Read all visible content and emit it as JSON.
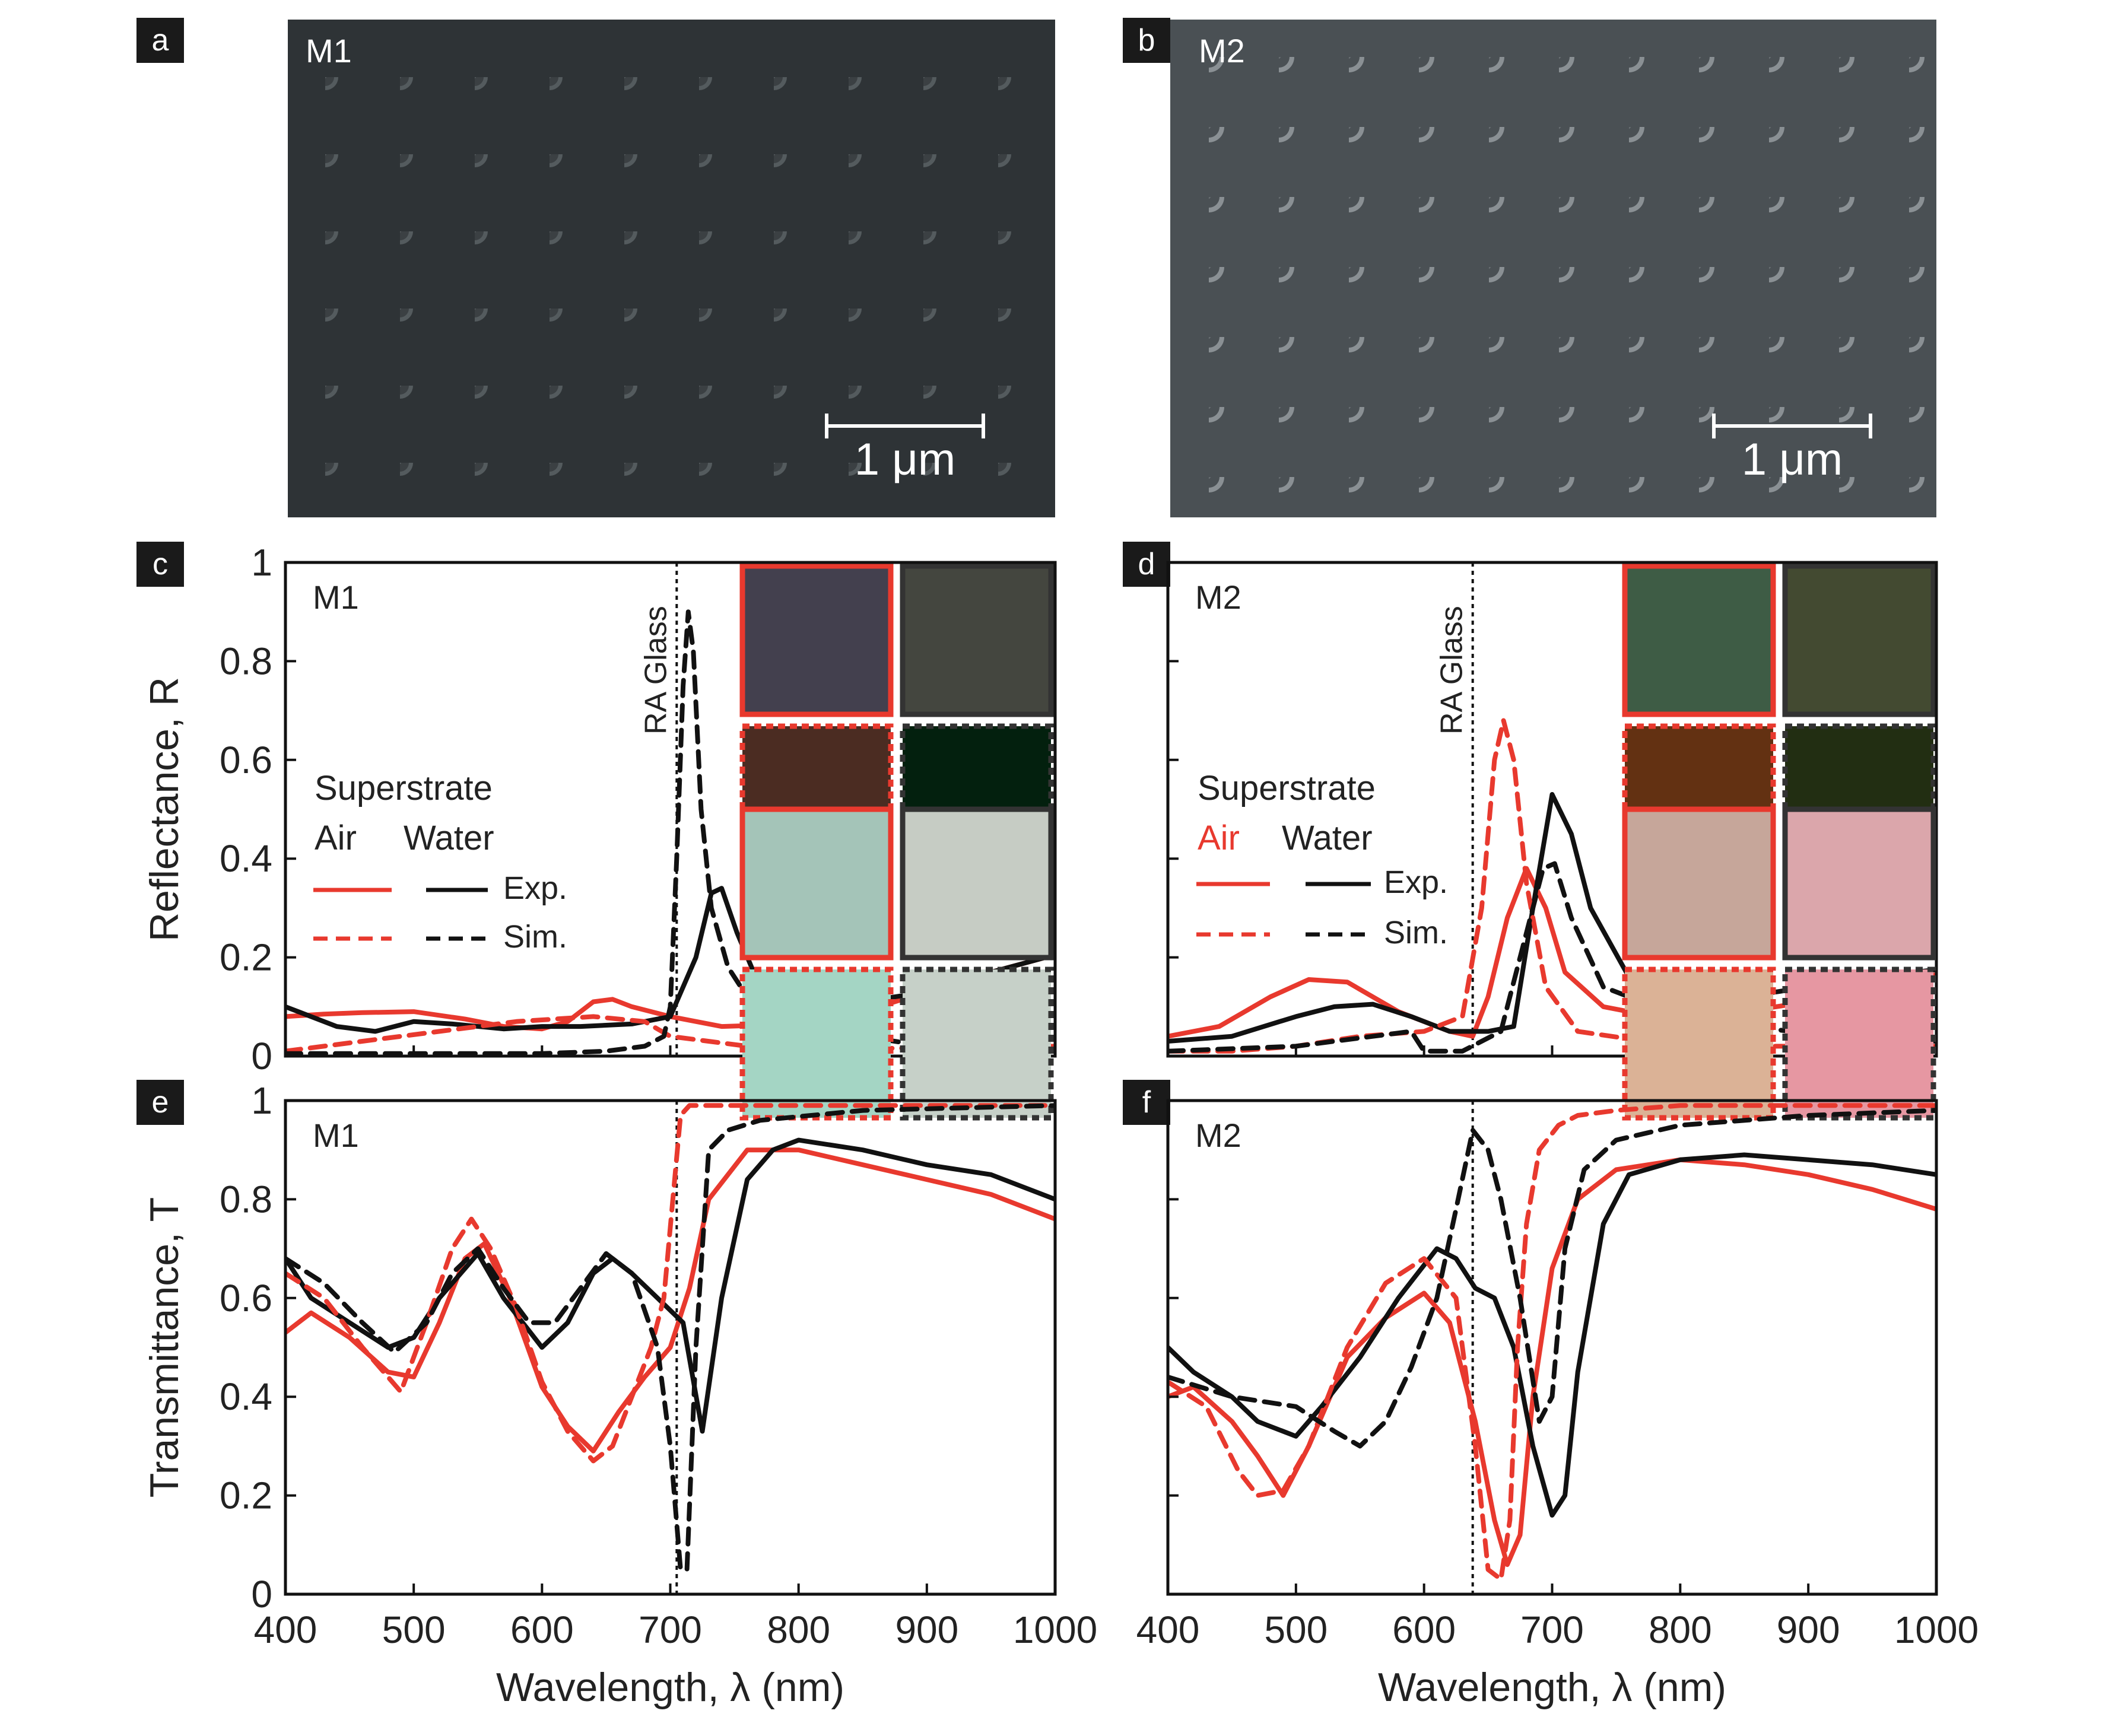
{
  "figure": {
    "panels": {
      "a": {
        "label": "a",
        "sample": "M1",
        "scalebar": "1 μm"
      },
      "b": {
        "label": "b",
        "sample": "M2",
        "scalebar": "1 μm"
      }
    },
    "colors": {
      "air": "#e8392e",
      "water": "#111111",
      "text": "#222222",
      "sem_bg_a": "#2e3336",
      "sem_bg_b": "#4a5054"
    },
    "legend": {
      "heading": "Superstrate",
      "air": "Air",
      "water": "Water",
      "exp": "Exp.",
      "sim": "Sim."
    }
  },
  "chart_data": [
    {
      "id": "c",
      "label": "c",
      "sample": "M1",
      "type": "line",
      "xlabel": "",
      "ylabel": "Reflectance, R",
      "xlim": [
        400,
        1000
      ],
      "ylim": [
        0,
        1
      ],
      "xticks": [],
      "yticks": [
        0,
        0.2,
        0.4,
        0.6,
        0.8,
        1
      ],
      "ra": {
        "x": 705,
        "label": "RA Glass"
      },
      "swatches": [
        "#43404e",
        "#44463f",
        "#4b2c22",
        "#03200e"
      ],
      "series": [
        {
          "name": "Air Exp.",
          "color": "#e8392e",
          "dash": false,
          "x": [
            400,
            430,
            460,
            500,
            540,
            570,
            600,
            620,
            640,
            655,
            670,
            700,
            740,
            800,
            850,
            900,
            950,
            1000
          ],
          "y": [
            0.08,
            0.085,
            0.088,
            0.09,
            0.075,
            0.06,
            0.055,
            0.07,
            0.11,
            0.115,
            0.1,
            0.08,
            0.06,
            0.065,
            0.09,
            0.13,
            0.17,
            0.205
          ]
        },
        {
          "name": "Water Exp.",
          "color": "#111111",
          "dash": false,
          "x": [
            400,
            440,
            470,
            500,
            530,
            570,
            600,
            630,
            670,
            700,
            720,
            732,
            740,
            752,
            765,
            780,
            800,
            850,
            900,
            950,
            1000
          ],
          "y": [
            0.1,
            0.06,
            0.05,
            0.07,
            0.065,
            0.055,
            0.06,
            0.06,
            0.065,
            0.08,
            0.2,
            0.33,
            0.34,
            0.25,
            0.17,
            0.15,
            0.12,
            0.11,
            0.13,
            0.17,
            0.205
          ]
        },
        {
          "name": "Air Sim.",
          "color": "#e8392e",
          "dash": true,
          "x": [
            400,
            460,
            520,
            580,
            640,
            680,
            700,
            760,
            850,
            1000
          ],
          "y": [
            0.01,
            0.03,
            0.05,
            0.07,
            0.08,
            0.07,
            0.04,
            0.02,
            0.015,
            0.02
          ]
        },
        {
          "name": "Water Sim.",
          "color": "#111111",
          "dash": true,
          "x": [
            400,
            500,
            600,
            650,
            680,
            695,
            700,
            705,
            710,
            714,
            718,
            724,
            732,
            745,
            760,
            800,
            900,
            1000
          ],
          "y": [
            0.005,
            0.005,
            0.005,
            0.01,
            0.02,
            0.04,
            0.1,
            0.4,
            0.75,
            0.9,
            0.82,
            0.5,
            0.3,
            0.18,
            0.12,
            0.06,
            0.02,
            0.01
          ]
        }
      ]
    },
    {
      "id": "d",
      "label": "d",
      "sample": "M2",
      "type": "line",
      "xlabel": "",
      "ylabel": "",
      "xlim": [
        400,
        1000
      ],
      "ylim": [
        0,
        1
      ],
      "xticks": [],
      "yticks": [],
      "ra": {
        "x": 638,
        "label": "RA Glass"
      },
      "swatches": [
        "#3e5c45",
        "#434a31",
        "#633112",
        "#222e12"
      ],
      "series": [
        {
          "name": "Air Exp.",
          "color": "#e8392e",
          "dash": false,
          "x": [
            400,
            440,
            480,
            510,
            540,
            580,
            620,
            638,
            650,
            665,
            680,
            695,
            710,
            740,
            780,
            850,
            900,
            950,
            1000
          ],
          "y": [
            0.04,
            0.06,
            0.12,
            0.155,
            0.15,
            0.09,
            0.05,
            0.04,
            0.12,
            0.28,
            0.38,
            0.3,
            0.17,
            0.1,
            0.08,
            0.09,
            0.11,
            0.14,
            0.165
          ]
        },
        {
          "name": "Water Exp.",
          "color": "#111111",
          "dash": false,
          "x": [
            400,
            450,
            500,
            530,
            560,
            590,
            620,
            650,
            670,
            685,
            700,
            715,
            730,
            760,
            800,
            850,
            900,
            950,
            1000
          ],
          "y": [
            0.03,
            0.04,
            0.08,
            0.1,
            0.105,
            0.08,
            0.05,
            0.05,
            0.06,
            0.3,
            0.53,
            0.45,
            0.3,
            0.16,
            0.12,
            0.12,
            0.14,
            0.16,
            0.175
          ]
        },
        {
          "name": "Air Sim.",
          "color": "#e8392e",
          "dash": true,
          "x": [
            400,
            450,
            500,
            550,
            600,
            630,
            645,
            655,
            662,
            670,
            680,
            695,
            720,
            800,
            900,
            1000
          ],
          "y": [
            0.01,
            0.01,
            0.02,
            0.04,
            0.05,
            0.08,
            0.3,
            0.6,
            0.68,
            0.6,
            0.35,
            0.14,
            0.05,
            0.02,
            0.02,
            0.02
          ]
        },
        {
          "name": "Water Sim.",
          "color": "#111111",
          "dash": true,
          "x": [
            400,
            500,
            560,
            590,
            600,
            630,
            660,
            680,
            693,
            702,
            715,
            740,
            800,
            900,
            1000
          ],
          "y": [
            0.01,
            0.02,
            0.04,
            0.05,
            0.01,
            0.01,
            0.05,
            0.25,
            0.38,
            0.39,
            0.28,
            0.14,
            0.08,
            0.045,
            0.03
          ]
        }
      ]
    },
    {
      "id": "e",
      "label": "e",
      "sample": "M1",
      "type": "line",
      "xlabel": "Wavelength, λ (nm)",
      "ylabel": "Transmittance, T",
      "xlim": [
        400,
        1000
      ],
      "ylim": [
        0,
        1
      ],
      "xticks": [
        400,
        500,
        600,
        700,
        800,
        900,
        1000
      ],
      "yticks": [
        0,
        0.2,
        0.4,
        0.6,
        0.8,
        1
      ],
      "ra": {
        "x": 705,
        "label": ""
      },
      "swatches": [
        "#a4c4b8",
        "#c6ccc4",
        "#a4d5c4",
        "#c6d0c8"
      ],
      "series": [
        {
          "name": "Air Exp.",
          "color": "#e8392e",
          "dash": false,
          "x": [
            400,
            420,
            450,
            480,
            500,
            520,
            540,
            555,
            575,
            600,
            620,
            640,
            660,
            680,
            700,
            715,
            730,
            760,
            800,
            850,
            900,
            950,
            1000
          ],
          "y": [
            0.53,
            0.57,
            0.52,
            0.45,
            0.44,
            0.55,
            0.68,
            0.71,
            0.6,
            0.42,
            0.34,
            0.29,
            0.37,
            0.44,
            0.5,
            0.62,
            0.8,
            0.9,
            0.9,
            0.87,
            0.84,
            0.81,
            0.76
          ]
        },
        {
          "name": "Water Exp.",
          "color": "#111111",
          "dash": false,
          "x": [
            400,
            420,
            450,
            480,
            500,
            520,
            550,
            570,
            600,
            620,
            640,
            655,
            670,
            690,
            710,
            725,
            740,
            760,
            780,
            800,
            850,
            900,
            950,
            1000
          ],
          "y": [
            0.68,
            0.6,
            0.55,
            0.5,
            0.52,
            0.6,
            0.69,
            0.6,
            0.5,
            0.55,
            0.65,
            0.68,
            0.65,
            0.6,
            0.55,
            0.33,
            0.6,
            0.84,
            0.9,
            0.92,
            0.9,
            0.87,
            0.85,
            0.8
          ]
        },
        {
          "name": "Air Sim.",
          "color": "#e8392e",
          "dash": true,
          "x": [
            400,
            430,
            460,
            490,
            510,
            530,
            545,
            560,
            580,
            600,
            620,
            640,
            655,
            670,
            685,
            695,
            702,
            708,
            715,
            750,
            850,
            1000
          ],
          "y": [
            0.65,
            0.6,
            0.5,
            0.41,
            0.55,
            0.7,
            0.76,
            0.7,
            0.58,
            0.43,
            0.33,
            0.27,
            0.3,
            0.4,
            0.5,
            0.6,
            0.8,
            0.97,
            0.99,
            0.99,
            0.99,
            0.99
          ]
        },
        {
          "name": "Water Sim.",
          "color": "#111111",
          "dash": true,
          "x": [
            400,
            430,
            460,
            485,
            510,
            530,
            550,
            570,
            590,
            610,
            630,
            650,
            670,
            690,
            700,
            708,
            713,
            720,
            730,
            745,
            770,
            850,
            1000
          ],
          "y": [
            0.68,
            0.63,
            0.55,
            0.49,
            0.55,
            0.65,
            0.7,
            0.62,
            0.55,
            0.55,
            0.62,
            0.69,
            0.65,
            0.5,
            0.3,
            0.05,
            0.05,
            0.5,
            0.9,
            0.94,
            0.96,
            0.98,
            0.99
          ]
        }
      ]
    },
    {
      "id": "f",
      "label": "f",
      "sample": "M2",
      "type": "line",
      "xlabel": "Wavelength, λ (nm)",
      "ylabel": "",
      "xlim": [
        400,
        1000
      ],
      "ylim": [
        0,
        1
      ],
      "xticks": [
        400,
        500,
        600,
        700,
        800,
        900,
        1000
      ],
      "yticks": [],
      "ra": {
        "x": 638,
        "label": ""
      },
      "swatches": [
        "#c6a69a",
        "#dba6ab",
        "#dbb296",
        "#e697a2"
      ],
      "series": [
        {
          "name": "Air Exp.",
          "color": "#e8392e",
          "dash": false,
          "x": [
            400,
            420,
            450,
            470,
            490,
            510,
            540,
            570,
            600,
            620,
            640,
            655,
            665,
            675,
            685,
            700,
            720,
            750,
            800,
            850,
            900,
            950,
            1000
          ],
          "y": [
            0.4,
            0.42,
            0.35,
            0.28,
            0.2,
            0.3,
            0.48,
            0.56,
            0.61,
            0.55,
            0.35,
            0.15,
            0.06,
            0.12,
            0.4,
            0.66,
            0.8,
            0.86,
            0.88,
            0.87,
            0.85,
            0.82,
            0.78
          ]
        },
        {
          "name": "Water Exp.",
          "color": "#111111",
          "dash": false,
          "x": [
            400,
            420,
            450,
            470,
            500,
            520,
            550,
            580,
            610,
            625,
            640,
            655,
            670,
            685,
            700,
            710,
            720,
            740,
            760,
            800,
            850,
            900,
            950,
            1000
          ],
          "y": [
            0.5,
            0.45,
            0.4,
            0.35,
            0.32,
            0.38,
            0.48,
            0.6,
            0.7,
            0.68,
            0.62,
            0.6,
            0.5,
            0.3,
            0.16,
            0.2,
            0.45,
            0.75,
            0.85,
            0.88,
            0.89,
            0.88,
            0.87,
            0.85
          ]
        },
        {
          "name": "Air Sim.",
          "color": "#e8392e",
          "dash": true,
          "x": [
            400,
            430,
            455,
            470,
            490,
            510,
            540,
            570,
            600,
            625,
            640,
            650,
            660,
            667,
            673,
            680,
            690,
            705,
            720,
            750,
            800,
            900,
            1000
          ],
          "y": [
            0.43,
            0.38,
            0.25,
            0.2,
            0.21,
            0.3,
            0.5,
            0.63,
            0.68,
            0.6,
            0.3,
            0.05,
            0.03,
            0.15,
            0.5,
            0.75,
            0.9,
            0.95,
            0.97,
            0.98,
            0.99,
            0.99,
            0.99
          ]
        },
        {
          "name": "Water Sim.",
          "color": "#111111",
          "dash": true,
          "x": [
            400,
            450,
            500,
            530,
            550,
            570,
            590,
            610,
            625,
            638,
            650,
            660,
            675,
            690,
            700,
            710,
            725,
            750,
            800,
            900,
            1000
          ],
          "y": [
            0.44,
            0.4,
            0.38,
            0.33,
            0.3,
            0.35,
            0.46,
            0.6,
            0.78,
            0.94,
            0.9,
            0.8,
            0.6,
            0.35,
            0.4,
            0.7,
            0.86,
            0.92,
            0.95,
            0.97,
            0.98
          ]
        }
      ]
    }
  ]
}
